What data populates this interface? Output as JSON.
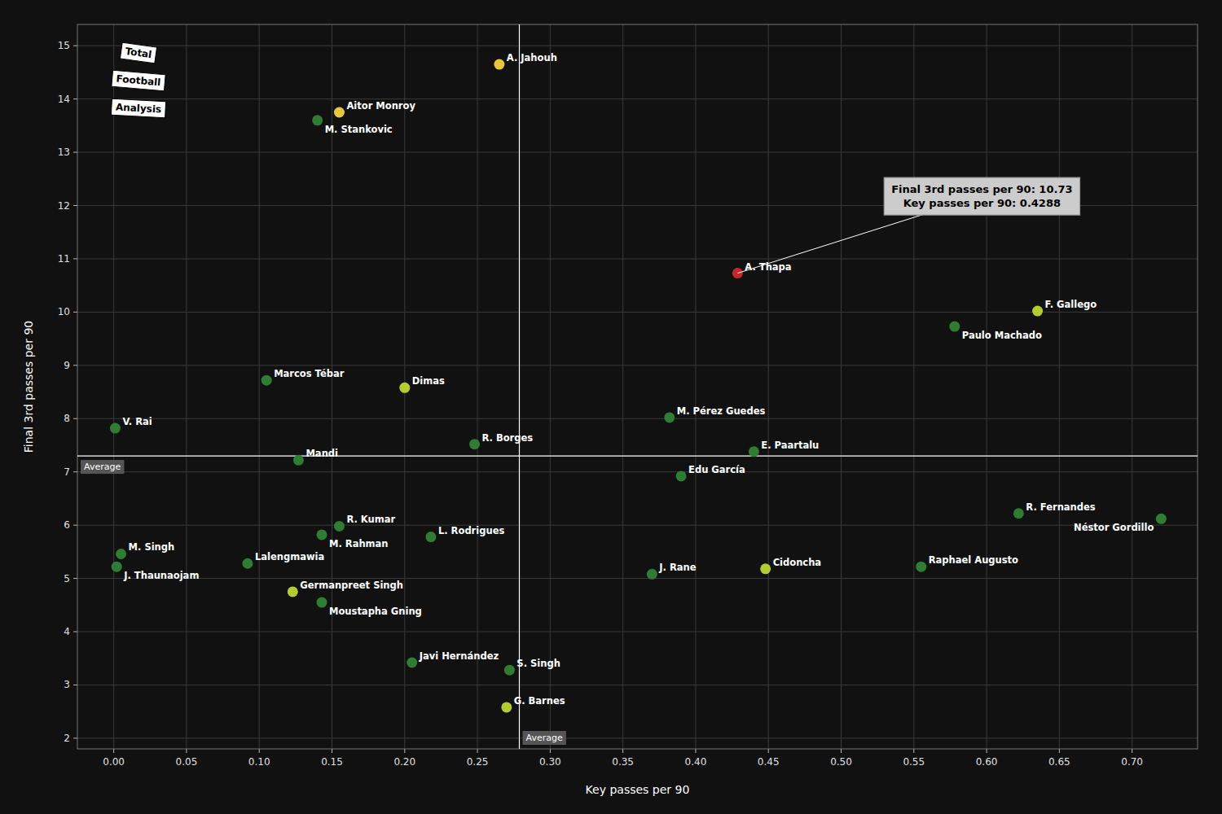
{
  "chart_data": {
    "type": "scatter",
    "xlabel": "Key passes per 90",
    "ylabel": "Final 3rd passes per 90",
    "x": [
      0.265,
      0.155,
      0.14,
      0.105,
      0.2,
      0.001,
      0.248,
      0.635,
      0.578,
      0.4288,
      0.382,
      0.44,
      0.39,
      0.448,
      0.555,
      0.622,
      0.72,
      0.37,
      0.127,
      0.155,
      0.143,
      0.218,
      0.005,
      0.092,
      0.002,
      0.123,
      0.143,
      0.205,
      0.272,
      0.27
    ],
    "values": [
      14.65,
      13.75,
      13.6,
      8.72,
      8.58,
      7.82,
      7.52,
      10.02,
      9.73,
      10.73,
      8.02,
      7.38,
      6.92,
      5.18,
      5.22,
      6.22,
      6.12,
      5.08,
      7.22,
      5.98,
      5.82,
      5.78,
      5.46,
      5.28,
      5.22,
      4.75,
      4.55,
      3.42,
      3.28,
      2.58
    ],
    "labels": [
      "A. Jahouh",
      "Aitor Monroy",
      "M. Stankovic",
      "Marcos Tébar",
      "Dimas",
      "V. Rai",
      "R. Borges",
      "F. Gallego",
      "Paulo Machado",
      "A. Thapa",
      "M. Pérez Guedes",
      "E. Paartalu",
      "Edu García",
      "Cidoncha",
      "Raphael Augusto",
      "R. Fernandes",
      "Néstor Gordillo",
      "J. Rane",
      "Mandi",
      "R. Kumar",
      "M. Rahman",
      "L. Rodrigues",
      "M. Singh",
      "Lalengmawia",
      "J. Thaunaojam",
      "Germanpreet Singh",
      "Moustapha Gning",
      "Javi Hernández",
      "S. Singh",
      "G. Barnes"
    ],
    "colors": [
      "#e8c83a",
      "#e8c83a",
      "#2e7d32",
      "#2e7d32",
      "#b5cc2e",
      "#2e7d32",
      "#2e7d32",
      "#b5cc2e",
      "#2e7d32",
      "#c62828",
      "#2e7d32",
      "#2e7d32",
      "#2e7d32",
      "#b5cc2e",
      "#2e7d32",
      "#2e7d32",
      "#2e7d32",
      "#2e7d32",
      "#2e7d32",
      "#2e7d32",
      "#2e7d32",
      "#2e7d32",
      "#2e7d32",
      "#2e7d32",
      "#2e7d32",
      "#b5cc2e",
      "#2e7d32",
      "#2e7d32",
      "#2e7d32",
      "#b5cc2e"
    ],
    "xlim": [
      -0.025,
      0.745
    ],
    "ylim": [
      1.8,
      15.4
    ],
    "xticks": [
      {
        "value": 0,
        "label": "0.00"
      },
      0.05,
      {
        "value": 0.1,
        "label": "0.10"
      },
      0.15,
      {
        "value": 0.2,
        "label": "0.20"
      },
      0.25,
      {
        "value": 0.3,
        "label": "0.30"
      },
      0.35,
      {
        "value": 0.4,
        "label": "0.40"
      },
      0.45,
      {
        "value": 0.5,
        "label": "0.50"
      },
      0.55,
      {
        "value": 0.6,
        "label": "0.60"
      },
      0.65,
      {
        "value": 0.7,
        "label": "0.70"
      }
    ],
    "yticks": [
      2,
      3,
      4,
      5,
      6,
      7,
      8,
      9,
      10,
      11,
      12,
      13,
      14,
      15
    ],
    "grid": true,
    "reference_lines": [
      {
        "axis": "y",
        "value": 7.3,
        "label": "Average"
      },
      {
        "axis": "x",
        "value": 0.2788,
        "label": "Average"
      }
    ],
    "annotations": [
      {
        "text": "Final 3rd passes per 90: 10.73\nKey passes per 90: 0.4288",
        "x": 0.4288,
        "y": 10.73
      }
    ],
    "logo": [
      "Total",
      "Football",
      "Analysis"
    ]
  }
}
